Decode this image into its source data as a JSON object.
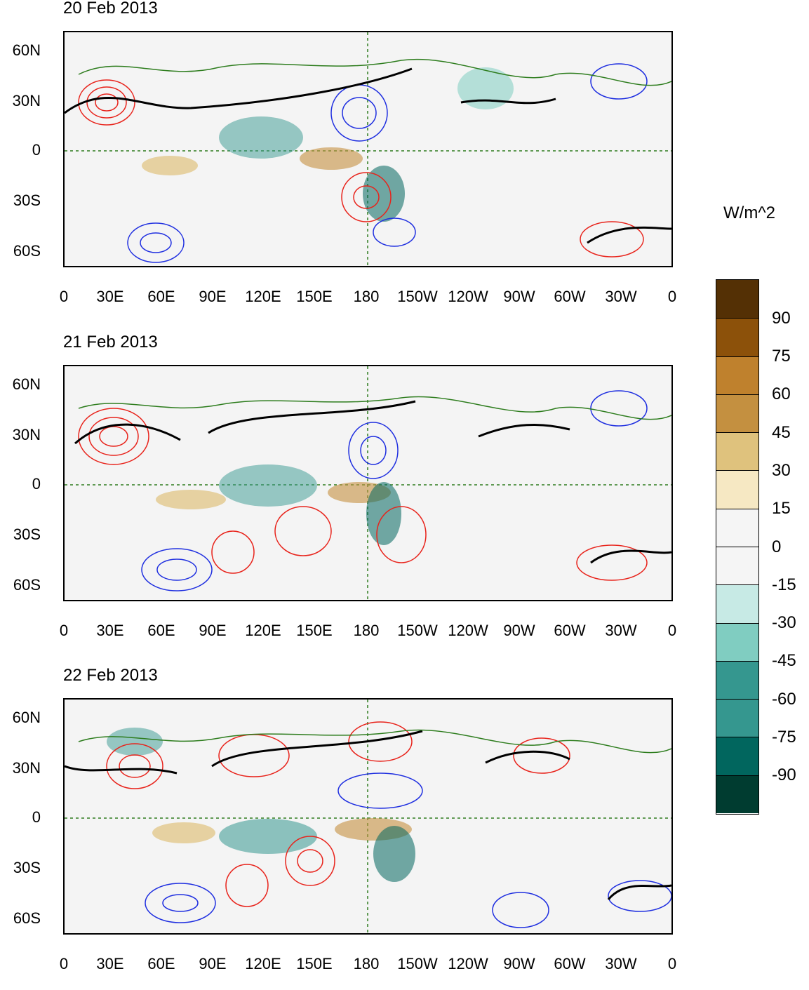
{
  "panels": [
    {
      "title": "20 Feb 2013"
    },
    {
      "title": "21 Feb 2013"
    },
    {
      "title": "22 Feb 2013"
    }
  ],
  "lat_ticks": [
    "60N",
    "30N",
    "0",
    "30S",
    "60S"
  ],
  "lon_ticks": [
    "0",
    "30E",
    "60E",
    "90E",
    "120E",
    "150E",
    "180",
    "150W",
    "120W",
    "90W",
    "60W",
    "30W",
    "0"
  ],
  "colorbar": {
    "units": "W/m^2",
    "labels": [
      "90",
      "75",
      "60",
      "45",
      "30",
      "15",
      "0",
      "-15",
      "-30",
      "-45",
      "-60",
      "-75",
      "-90"
    ],
    "colors": [
      "#543005",
      "#8c510a",
      "#bf812d",
      "#c49040",
      "#dfc27d",
      "#f6e8c3",
      "#f5f5f5",
      "#f5f5f5",
      "#c7eae5",
      "#80cdc1",
      "#35978f",
      "#35978f",
      "#01665e",
      "#003c30"
    ]
  },
  "colors": {
    "positive_contour": "#e8231b",
    "negative_contour": "#1f2fe0",
    "jet_contour": "#000000",
    "coastline": "#2e7d1e"
  }
}
